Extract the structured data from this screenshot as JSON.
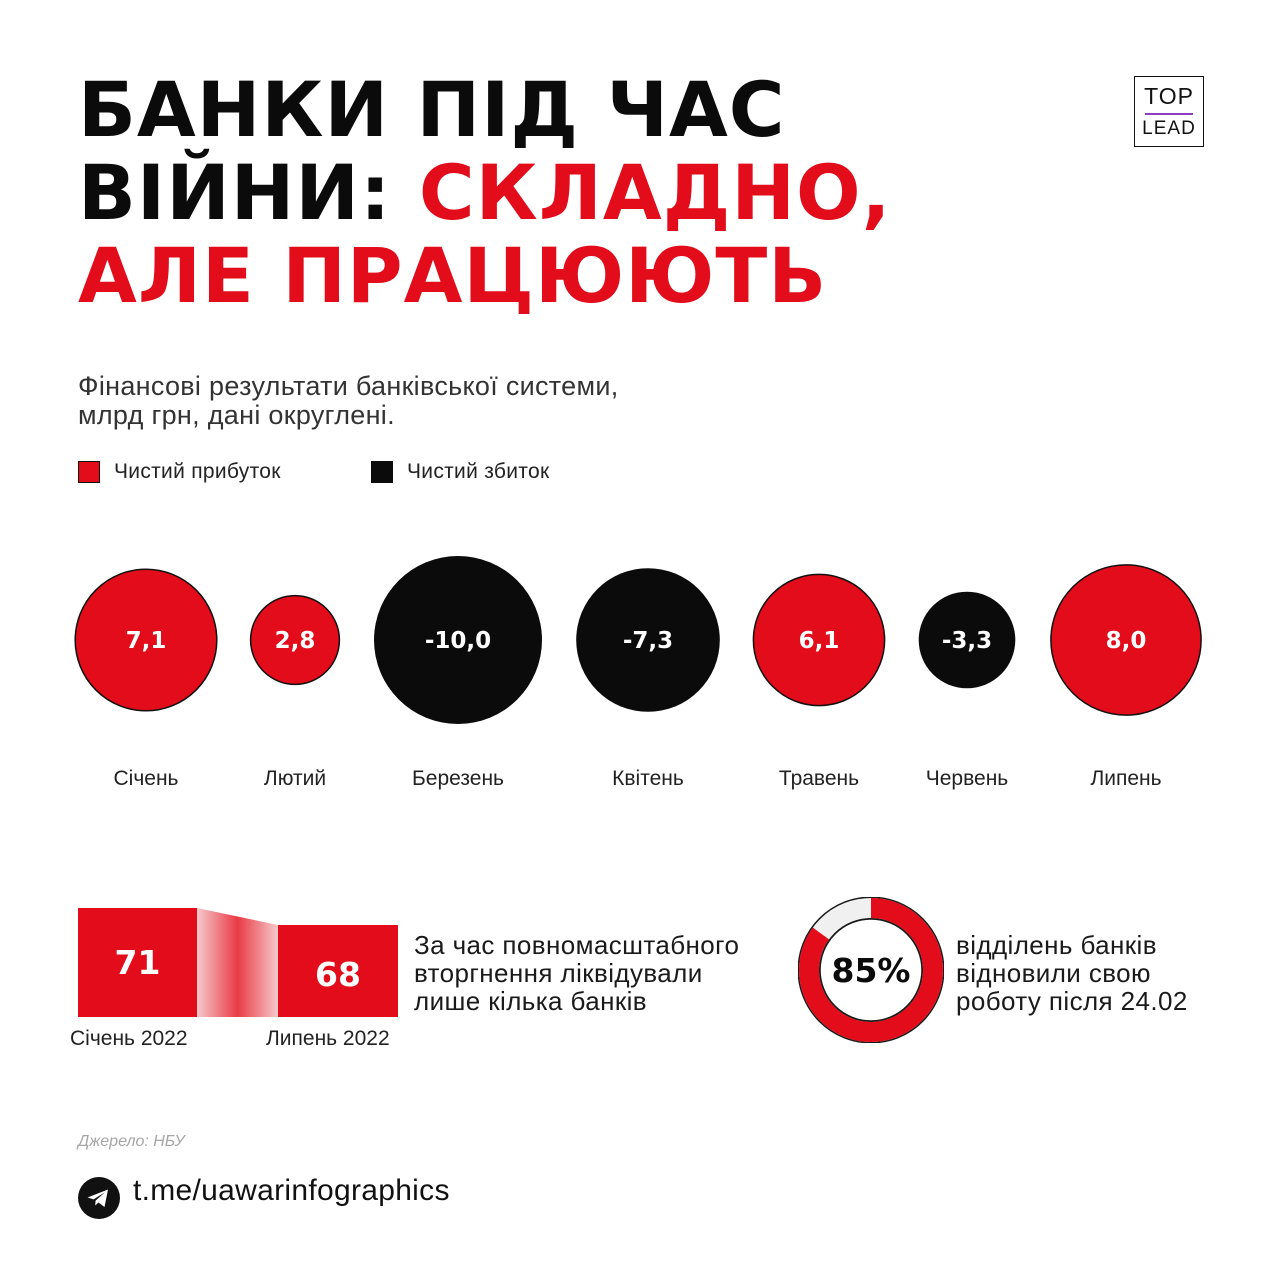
{
  "title": {
    "line1": "БАНКИ ПІД ЧАС",
    "line2_black": "ВІЙНИ: ",
    "line2_red": "СКЛАДНО,",
    "line3": "АЛЕ ПРАЦЮЮТЬ"
  },
  "logo": {
    "top": "TOP",
    "bottom": "LEAD"
  },
  "subtitle": {
    "line1": "Фінансові результати банківської системи,",
    "line2": "млрд грн, дані округлені."
  },
  "legend": [
    {
      "label": "Чистий прибуток",
      "color": "#e20c1a"
    },
    {
      "label": "Чистий збиток",
      "color": "#0b0b0b"
    }
  ],
  "colors": {
    "profit": "#e20c1a",
    "loss": "#0b0b0b",
    "accent": "#e20c1a",
    "track": "#f0f0f0"
  },
  "chart_data": [
    {
      "type": "bubble",
      "title": "Фінансові результати банківської системи, млрд грн, дані округлені.",
      "categories": [
        "Січень",
        "Лютий",
        "Березень",
        "Квітень",
        "Травень",
        "Червень",
        "Липень"
      ],
      "values": [
        7.1,
        2.8,
        -10.0,
        -7.3,
        6.1,
        -3.3,
        8.0
      ],
      "labels": [
        "7,1",
        "2,8",
        "-10,0",
        "-7,3",
        "6,1",
        "-3,3",
        "8,0"
      ],
      "series": [
        {
          "name": "Чистий прибуток"
        },
        {
          "name": "Чистий збиток"
        }
      ],
      "legend": "top-left"
    },
    {
      "type": "bar",
      "categories": [
        "Січень 2022",
        "Липень 2022"
      ],
      "values": [
        71,
        68
      ]
    },
    {
      "type": "pie",
      "values": [
        85,
        15
      ],
      "label": "85%"
    }
  ],
  "banks_note": {
    "line1": "За час повномасштабного",
    "line2": "вторгнення ліквідували",
    "line3": "лише кілька банків"
  },
  "branches_note": {
    "line1": "відділень банків",
    "line2": "відновили свою",
    "line3": "роботу після 24.02"
  },
  "source": "Джерело: НБУ",
  "channel": "t.me/uawarinfographics",
  "icons": {
    "channel": "telegram-icon"
  }
}
